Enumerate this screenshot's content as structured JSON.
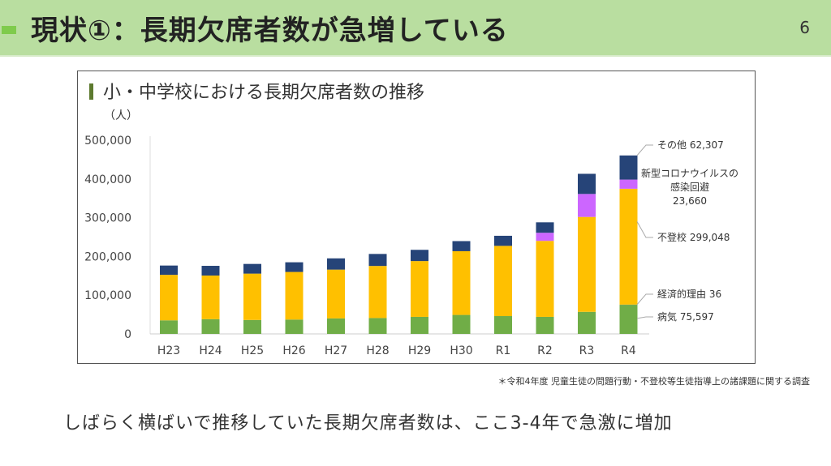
{
  "header": {
    "title": "現状①：長期欠席者数が急増している",
    "page": "6"
  },
  "footnote": "＊令和4年度 児童生徒の問題行動・不登校等生徒指導上の諸課題に関する調査",
  "message": "しばらく横ばいで推移していた長期欠席者数は、ここ3-4年で急激に増加",
  "chart_data": {
    "type": "bar",
    "stacked": true,
    "title": "小・中学校における長期欠席者数の推移",
    "ylabel": "（人）",
    "ylim": [
      0,
      500000
    ],
    "yticks": [
      "0",
      "100,000",
      "200,000",
      "300,000",
      "400,000",
      "500,000"
    ],
    "categories": [
      "H23",
      "H24",
      "H25",
      "H26",
      "H27",
      "H28",
      "H29",
      "H30",
      "R1",
      "R2",
      "R3",
      "R4"
    ],
    "series": [
      {
        "name": "病気",
        "color": "#70ad47",
        "values": [
          35000,
          38000,
          36000,
          37000,
          40000,
          41000,
          44000,
          49000,
          46000,
          44000,
          57000,
          75597
        ]
      },
      {
        "name": "経済的理由",
        "color": "#a0a0a0",
        "values": [
          0,
          0,
          0,
          0,
          0,
          0,
          0,
          0,
          0,
          0,
          0,
          36
        ]
      },
      {
        "name": "不登校",
        "color": "#ffc000",
        "values": [
          117458,
          112689,
          119617,
          122897,
          125991,
          134398,
          144031,
          164528,
          181272,
          196127,
          244940,
          299048
        ]
      },
      {
        "name": "新型コロナウイルスの感染回避",
        "color": "#cc66ff",
        "values": [
          0,
          0,
          0,
          0,
          0,
          0,
          0,
          0,
          0,
          20905,
          59316,
          23660
        ]
      },
      {
        "name": "その他",
        "color": "#264478",
        "values": [
          24000,
          25000,
          25000,
          25000,
          29000,
          31000,
          29000,
          26000,
          26000,
          27000,
          52000,
          62307
        ]
      }
    ],
    "annotations": [
      {
        "lines": [
          "その他 62,307"
        ]
      },
      {
        "lines": [
          "新型コロナウイルスの",
          "感染回避",
          "23,660"
        ]
      },
      {
        "lines": [
          "不登校 299,048"
        ]
      },
      {
        "lines": [
          "経済的理由 36"
        ]
      },
      {
        "lines": [
          "病気 75,597"
        ]
      }
    ]
  }
}
